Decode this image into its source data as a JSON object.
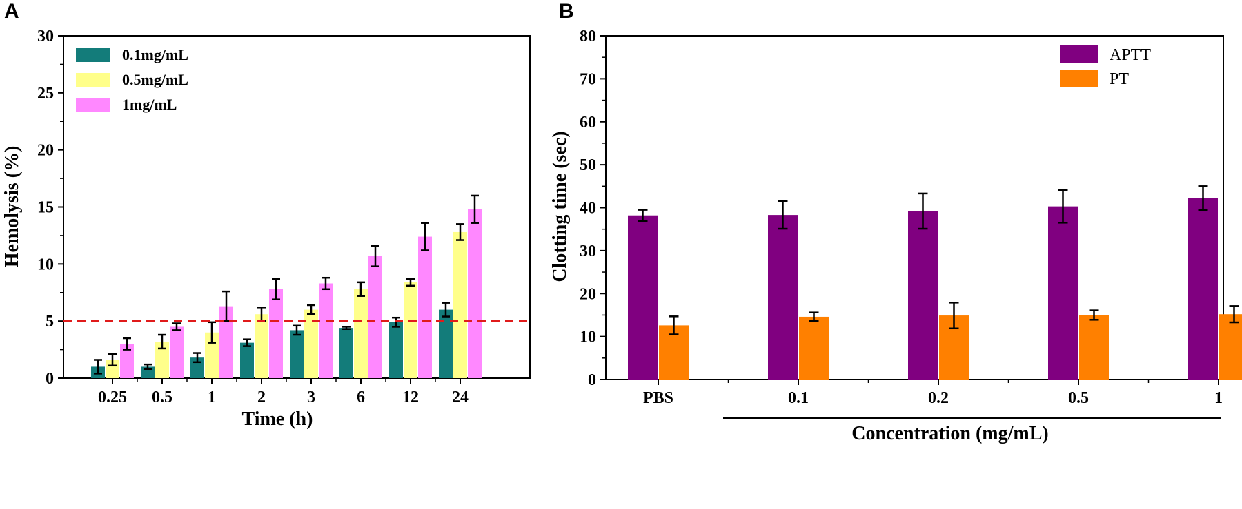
{
  "chart_data": [
    {
      "panel": "A",
      "type": "bar",
      "title": "",
      "xlabel": "Time (h)",
      "ylabel": "Hemolysis (%)",
      "ylim": [
        0,
        30
      ],
      "yticks": [
        0,
        5,
        10,
        15,
        20,
        25,
        30
      ],
      "categories": [
        "0.25",
        "0.5",
        "1",
        "2",
        "3",
        "6",
        "12",
        "24"
      ],
      "series": [
        {
          "name": "0.1mg/mL",
          "color": "#137C7A",
          "values": [
            1.0,
            1.0,
            1.8,
            3.1,
            4.2,
            4.4,
            4.9,
            6.0
          ],
          "errors": [
            0.6,
            0.2,
            0.4,
            0.3,
            0.4,
            0.1,
            0.4,
            0.6
          ]
        },
        {
          "name": "0.5mg/mL",
          "color": "#FFFF8A",
          "values": [
            1.6,
            3.2,
            4.0,
            5.6,
            6.0,
            7.8,
            8.4,
            12.8
          ],
          "errors": [
            0.5,
            0.6,
            0.9,
            0.6,
            0.4,
            0.6,
            0.3,
            0.7
          ]
        },
        {
          "name": "1mg/mL",
          "color": "#FF88FF",
          "values": [
            3.0,
            4.5,
            6.3,
            7.8,
            8.3,
            10.7,
            12.4,
            14.8
          ],
          "errors": [
            0.5,
            0.3,
            1.3,
            0.9,
            0.5,
            0.9,
            1.2,
            1.2
          ]
        }
      ],
      "reference_line": {
        "y": 5,
        "style": "dashed",
        "color": "#E01B1B"
      },
      "legend_position": "top-left"
    },
    {
      "panel": "B",
      "type": "bar",
      "title": "",
      "xlabel": "Concentration (mg/mL)",
      "ylabel": "Clotting time (sec)",
      "ylim": [
        0,
        80
      ],
      "yticks": [
        0,
        10,
        20,
        30,
        40,
        50,
        60,
        70,
        80
      ],
      "categories": [
        "PBS",
        "0.1",
        "0.2",
        "0.5",
        "1"
      ],
      "series": [
        {
          "name": "APTT",
          "color": "#800080",
          "values": [
            38.2,
            38.3,
            39.2,
            40.3,
            42.2
          ],
          "errors": [
            1.3,
            3.2,
            4.1,
            3.8,
            2.8
          ]
        },
        {
          "name": "PT",
          "color": "#FF8000",
          "values": [
            12.6,
            14.6,
            14.9,
            15.0,
            15.2
          ],
          "errors": [
            2.1,
            1.0,
            3.0,
            1.1,
            1.9
          ]
        }
      ],
      "legend_position": "top-right"
    }
  ]
}
